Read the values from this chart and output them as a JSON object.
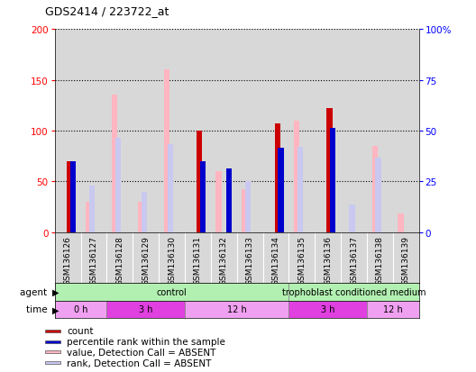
{
  "title": "GDS2414 / 223722_at",
  "samples": [
    "GSM136126",
    "GSM136127",
    "GSM136128",
    "GSM136129",
    "GSM136130",
    "GSM136131",
    "GSM136132",
    "GSM136133",
    "GSM136134",
    "GSM136135",
    "GSM136136",
    "GSM136137",
    "GSM136138",
    "GSM136139"
  ],
  "count": [
    70,
    0,
    0,
    0,
    0,
    100,
    0,
    0,
    107,
    0,
    122,
    0,
    0,
    0
  ],
  "percentile_rank": [
    70,
    0,
    0,
    0,
    0,
    70,
    63,
    0,
    83,
    0,
    103,
    0,
    0,
    0
  ],
  "value_absent": [
    0,
    30,
    135,
    30,
    160,
    0,
    60,
    42,
    0,
    110,
    0,
    0,
    85,
    18
  ],
  "rank_absent": [
    0,
    46,
    93,
    40,
    87,
    0,
    0,
    50,
    0,
    84,
    0,
    27,
    73,
    0
  ],
  "agent_groups": [
    {
      "label": "control",
      "start": 0,
      "end": 9,
      "color": "#b2f0b2"
    },
    {
      "label": "trophoblast conditioned medium",
      "start": 9,
      "end": 14,
      "color": "#b2f0b2"
    }
  ],
  "time_groups": [
    {
      "label": "0 h",
      "start": 0,
      "end": 2,
      "color": "#f0a0f0"
    },
    {
      "label": "3 h",
      "start": 2,
      "end": 5,
      "color": "#e040e0"
    },
    {
      "label": "12 h",
      "start": 5,
      "end": 9,
      "color": "#f0a0f0"
    },
    {
      "label": "3 h",
      "start": 9,
      "end": 12,
      "color": "#e040e0"
    },
    {
      "label": "12 h",
      "start": 12,
      "end": 14,
      "color": "#f0a0f0"
    }
  ],
  "ylim": [
    0,
    200
  ],
  "y2lim": [
    0,
    100
  ],
  "yticks": [
    0,
    50,
    100,
    150,
    200
  ],
  "y2ticks": [
    0,
    25,
    50,
    75,
    100
  ],
  "color_count": "#cc0000",
  "color_percentile": "#0000cc",
  "color_value_absent": "#ffb6c1",
  "color_rank_absent": "#c8c8f0",
  "bg_color": "#d8d8d8"
}
